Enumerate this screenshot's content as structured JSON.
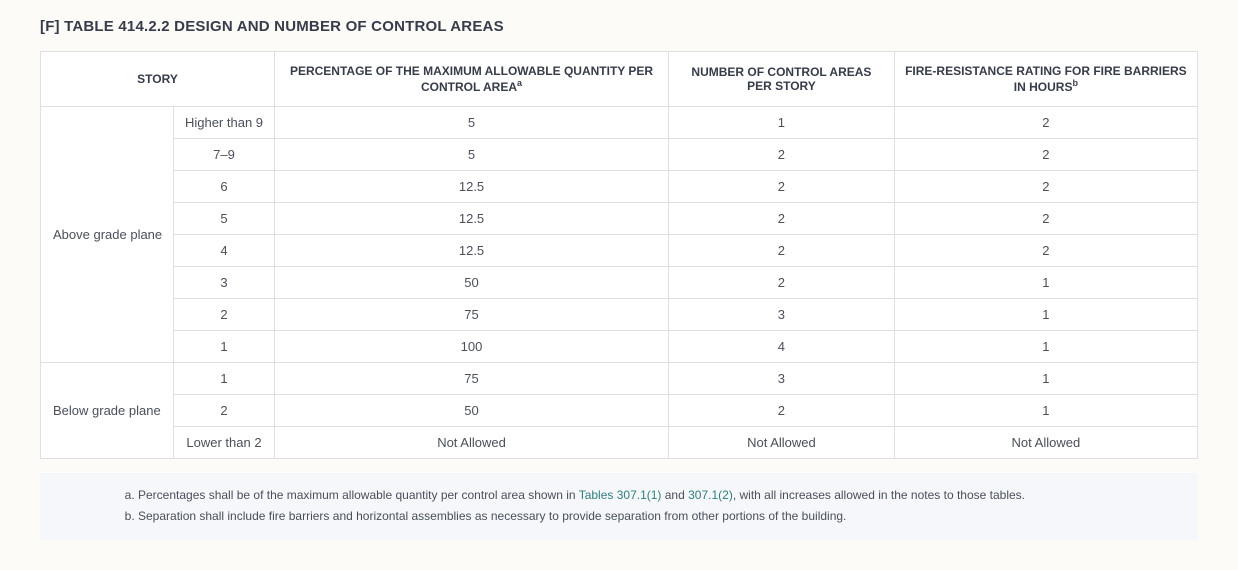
{
  "heading": "[F] TABLE 414.2.2 DESIGN AND NUMBER OF CONTROL AREAS",
  "columns": {
    "story": "STORY",
    "percentage_pre": "PERCENTAGE OF THE MAXIMUM ALLOWABLE QUANTITY PER CONTROL AREA",
    "percentage_sup": "a",
    "number": "NUMBER OF CONTROL AREAS PER STORY",
    "fire_pre": "FIRE-RESISTANCE RATING FOR FIRE BARRIERS IN HOURS",
    "fire_sup": "b"
  },
  "groups": {
    "above": "Above grade plane",
    "below": "Below grade plane"
  },
  "rows": {
    "above": [
      {
        "story": "Higher than 9",
        "pct": "5",
        "num": "1",
        "fire": "2"
      },
      {
        "story": "7–9",
        "pct": "5",
        "num": "2",
        "fire": "2"
      },
      {
        "story": "6",
        "pct": "12.5",
        "num": "2",
        "fire": "2"
      },
      {
        "story": "5",
        "pct": "12.5",
        "num": "2",
        "fire": "2"
      },
      {
        "story": "4",
        "pct": "12.5",
        "num": "2",
        "fire": "2"
      },
      {
        "story": "3",
        "pct": "50",
        "num": "2",
        "fire": "1"
      },
      {
        "story": "2",
        "pct": "75",
        "num": "3",
        "fire": "1"
      },
      {
        "story": "1",
        "pct": "100",
        "num": "4",
        "fire": "1"
      }
    ],
    "below": [
      {
        "story": "1",
        "pct": "75",
        "num": "3",
        "fire": "1"
      },
      {
        "story": "2",
        "pct": "50",
        "num": "2",
        "fire": "1"
      },
      {
        "story": "Lower than 2",
        "pct": "Not Allowed",
        "num": "Not Allowed",
        "fire": "Not Allowed"
      }
    ]
  },
  "footnotes": {
    "a_pre": "Percentages shall be of the maximum allowable quantity per control area shown in ",
    "a_link1": "Tables 307.1(1)",
    "a_mid": " and ",
    "a_link2": "307.1(2)",
    "a_post": ", with all increases allowed in the notes to those tables.",
    "b": "Separation shall include fire barriers and horizontal assemblies as necessary to provide separation from other portions of the building."
  }
}
